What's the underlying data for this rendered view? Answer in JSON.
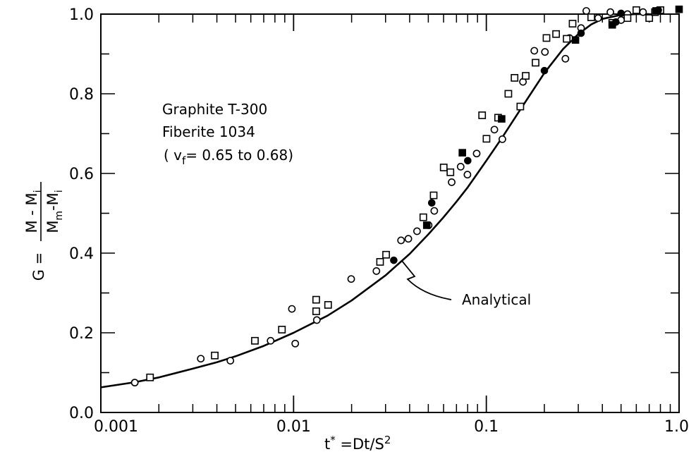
{
  "chart_data": {
    "type": "scatter",
    "x_scale": "log",
    "xlim": [
      0.001,
      1.0
    ],
    "ylim": [
      0.0,
      1.0
    ],
    "grid": false,
    "legend": "none",
    "x_ticks": [
      {
        "value": 0.001,
        "label": "0.001"
      },
      {
        "value": 0.01,
        "label": "0.01"
      },
      {
        "value": 0.1,
        "label": "0.1"
      },
      {
        "value": 1.0,
        "label": "1.0"
      }
    ],
    "y_ticks": [
      {
        "value": 0.0,
        "label": "0.0"
      },
      {
        "value": 0.2,
        "label": "0.2"
      },
      {
        "value": 0.4,
        "label": "0.4"
      },
      {
        "value": 0.6,
        "label": "0.6"
      },
      {
        "value": 0.8,
        "label": "0.8"
      },
      {
        "value": 1.0,
        "label": "1.0"
      }
    ],
    "xlabel": {
      "base": "t",
      "base_sup": "*",
      "eq": " =Dt/S",
      "eq_sup": "2"
    },
    "ylabel": {
      "prefix": "G =",
      "numerator": "M - M",
      "numerator_sub": "i",
      "den_a": "M",
      "den_a_sub": "m",
      "den_b": "-M",
      "den_b_sub": "i"
    },
    "material_text": [
      "Graphite  T-300",
      "Fiberite  1034"
    ],
    "fiber_text": {
      "open": "( v",
      "sub": "f",
      "rest": "= 0.65 to 0.68)"
    },
    "analytical_label": "Analytical",
    "analytical_curve": {
      "x": [
        0.001,
        0.0015,
        0.002,
        0.003,
        0.004,
        0.005,
        0.007,
        0.01,
        0.015,
        0.02,
        0.03,
        0.04,
        0.05,
        0.06,
        0.07,
        0.08,
        0.1,
        0.12,
        0.15,
        0.2,
        0.25,
        0.3,
        0.35,
        0.4,
        0.5,
        0.6,
        0.7
      ],
      "y": [
        0.063,
        0.076,
        0.088,
        0.11,
        0.126,
        0.141,
        0.167,
        0.2,
        0.243,
        0.281,
        0.344,
        0.398,
        0.447,
        0.49,
        0.529,
        0.565,
        0.632,
        0.688,
        0.76,
        0.852,
        0.912,
        0.95,
        0.974,
        0.988,
        0.998,
        1.0,
        1.0
      ]
    },
    "series": [
      {
        "marker": "open-circle",
        "x": [
          0.0015,
          0.0033,
          0.0047,
          0.0076,
          0.0098,
          0.0102,
          0.0132,
          0.0199,
          0.0269,
          0.0361,
          0.0394,
          0.0437,
          0.0502,
          0.0537,
          0.0661,
          0.0736,
          0.0798,
          0.0891,
          0.1101,
          0.1211,
          0.1549,
          0.1774,
          0.2014,
          0.2572,
          0.2701,
          0.3101,
          0.3301,
          0.3801,
          0.4401,
          0.5001,
          0.5401,
          0.6502
        ],
        "y": [
          0.075,
          0.135,
          0.13,
          0.18,
          0.26,
          0.173,
          0.232,
          0.335,
          0.355,
          0.432,
          0.436,
          0.455,
          0.47,
          0.506,
          0.578,
          0.617,
          0.597,
          0.65,
          0.71,
          0.686,
          0.83,
          0.908,
          0.905,
          0.888,
          0.94,
          0.965,
          1.008,
          0.99,
          1.005,
          0.985,
          1.0,
          1.005
        ]
      },
      {
        "marker": "open-square",
        "x": [
          0.0018,
          0.0039,
          0.0063,
          0.0087,
          0.0131,
          0.0131,
          0.0151,
          0.0281,
          0.0302,
          0.0471,
          0.0533,
          0.0601,
          0.0651,
          0.0951,
          0.1002,
          0.1151,
          0.1301,
          0.1401,
          0.1501,
          0.1601,
          0.1801,
          0.2052,
          0.2301,
          0.2611,
          0.2802,
          0.3501,
          0.4501,
          0.5401,
          0.6001,
          0.7001,
          0.7501,
          0.8001
        ],
        "y": [
          0.088,
          0.143,
          0.18,
          0.208,
          0.283,
          0.254,
          0.27,
          0.378,
          0.396,
          0.49,
          0.545,
          0.615,
          0.603,
          0.746,
          0.687,
          0.74,
          0.8,
          0.84,
          0.768,
          0.845,
          0.878,
          0.94,
          0.95,
          0.938,
          0.976,
          0.992,
          0.978,
          0.99,
          1.01,
          0.99,
          1.005,
          1.01
        ]
      },
      {
        "marker": "filled-circle",
        "x": [
          0.0331,
          0.0521,
          0.0801,
          0.2001,
          0.3101,
          0.4701,
          0.5001,
          0.7801
        ],
        "y": [
          0.382,
          0.526,
          0.632,
          0.858,
          0.952,
          0.98,
          1.002,
          1.01
        ]
      },
      {
        "marker": "filled-square",
        "x": [
          0.0491,
          0.0751,
          0.1201,
          0.2901,
          0.4501,
          0.7601,
          1.0
        ],
        "y": [
          0.47,
          0.652,
          0.737,
          0.935,
          0.973,
          1.008,
          1.012
        ]
      }
    ]
  }
}
